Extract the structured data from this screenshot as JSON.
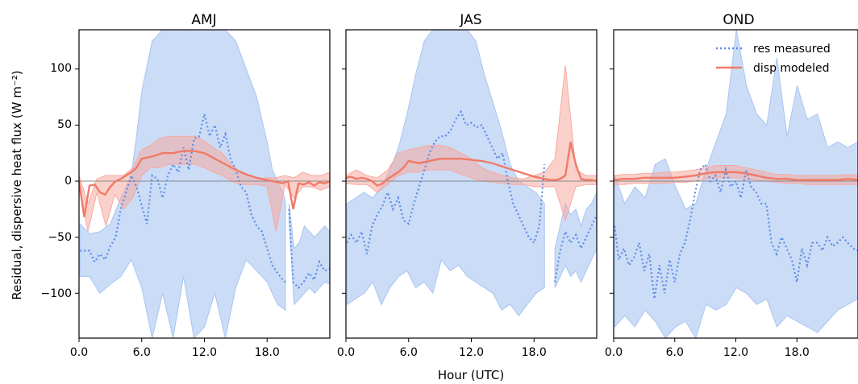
{
  "figure": {
    "ylabel": "Residual, dispersive heat flux (W m⁻²)",
    "xlabel": "Hour (UTC)"
  },
  "legend": {
    "placement": "top-right of third panel",
    "entries": [
      {
        "label": "res measured",
        "style": "dotted",
        "color": "#5b8ee6"
      },
      {
        "label": "disp modeled",
        "style": "solid",
        "color": "#f07a68"
      }
    ]
  },
  "colors": {
    "measured": "#5b8ee6",
    "measured_fill": "#a9c4f2",
    "modeled": "#f07a68",
    "modeled_fill": "#f6aaa0",
    "zero_line": "#888888"
  },
  "chart_data": [
    {
      "type": "line",
      "title": "AMJ",
      "xlim": [
        0,
        24
      ],
      "ylim": [
        -140,
        135
      ],
      "xticks": [
        0,
        6,
        12,
        18
      ],
      "xtick_labels": [
        "0.0",
        "6.0",
        "12.0",
        "18.0"
      ],
      "yticks": [
        -100,
        -50,
        0,
        50,
        100
      ],
      "ytick_labels": [
        "−100",
        "−50",
        "0",
        "50",
        "100"
      ],
      "series": [
        {
          "name": "res measured",
          "x": [
            0.1,
            0.5,
            1.0,
            1.5,
            2.0,
            2.5,
            3.0,
            3.5,
            4.0,
            4.5,
            5.0,
            5.5,
            6.0,
            6.5,
            7.0,
            7.5,
            8.0,
            8.5,
            9.0,
            9.5,
            10.0,
            10.5,
            11.0,
            11.5,
            12.0,
            12.5,
            13.0,
            13.5,
            14.0,
            14.5,
            15.0,
            15.5,
            16.0,
            16.5,
            17.0,
            17.5,
            18.0,
            18.5,
            19.0,
            19.5,
            19.75
          ],
          "y": [
            -62,
            -62,
            -62,
            -72,
            -65,
            -70,
            -58,
            -50,
            -25,
            -10,
            5,
            -5,
            -22,
            -38,
            5,
            2,
            -15,
            5,
            15,
            8,
            30,
            10,
            38,
            40,
            60,
            40,
            50,
            30,
            42,
            20,
            10,
            -5,
            -10,
            -30,
            -40,
            -45,
            -60,
            -75,
            -82,
            -88,
            -90
          ]
        },
        {
          "name": "res measured (segment 2)",
          "x": [
            20.1,
            20.5,
            21.0,
            21.5,
            22.0,
            22.5,
            23.0,
            23.5,
            24.0
          ],
          "y": [
            -25,
            -90,
            -95,
            -90,
            -82,
            -88,
            -72,
            -80,
            -78
          ]
        }
      ],
      "bands": {
        "measured_upper_x": [
          0.1,
          1.0,
          2.0,
          3.0,
          4.0,
          5.0,
          5.5,
          6.0,
          7.0,
          8.0,
          9.0,
          10.0,
          11.0,
          12.0,
          13.0,
          14.0,
          15.0,
          16.0,
          17.0,
          18.0,
          18.5,
          19.0,
          19.5,
          19.75
        ],
        "measured_upper_y": [
          -38,
          -47,
          -45,
          -38,
          -15,
          5,
          40,
          80,
          125,
          135,
          135,
          135,
          135,
          135,
          135,
          135,
          125,
          100,
          75,
          35,
          10,
          0,
          -10,
          -18
        ],
        "measured_lower_x": [
          0.1,
          1.0,
          2.0,
          3.0,
          4.0,
          5.0,
          6.0,
          7.0,
          8.0,
          9.0,
          10.0,
          11.0,
          12.0,
          13.0,
          14.0,
          15.0,
          16.0,
          17.0,
          18.0,
          19.0,
          19.75
        ],
        "measured_lower_y": [
          -85,
          -85,
          -100,
          -92,
          -85,
          -70,
          -95,
          -140,
          -100,
          -140,
          -85,
          -140,
          -130,
          -100,
          -140,
          -95,
          -70,
          -80,
          -90,
          -110,
          -115
        ],
        "measured2_upper_y": [
          -20,
          -60,
          -55,
          -40,
          -45,
          -50,
          -45,
          -40,
          -45
        ],
        "measured2_lower_y": [
          -35,
          -110,
          -105,
          -100,
          -95,
          -100,
          -95,
          -90,
          -92
        ],
        "modeled_upper_y": [
          5,
          -20,
          2,
          5,
          5,
          5,
          12,
          28,
          32,
          38,
          40,
          40,
          40,
          40,
          36,
          30,
          25,
          15,
          8,
          5,
          2,
          3,
          3,
          5,
          3,
          8,
          5,
          5,
          8
        ],
        "modeled_lower_y": [
          -5,
          -45,
          -10,
          -40,
          -12,
          -25,
          -15,
          5,
          12,
          12,
          15,
          15,
          15,
          15,
          12,
          8,
          5,
          0,
          -3,
          -3,
          -3,
          -5,
          -45,
          -3,
          -15,
          -5,
          -5,
          -8,
          -5
        ]
      },
      "modeled": {
        "name": "disp modeled",
        "x": [
          0.0,
          0.5,
          1.0,
          1.5,
          2.0,
          2.5,
          3.0,
          3.5,
          4.0,
          4.5,
          5.0,
          5.5,
          6.0,
          7.0,
          8.0,
          9.0,
          10.0,
          11.0,
          12.0,
          13.0,
          14.0,
          15.0,
          16.0,
          17.0,
          18.0,
          19.0,
          19.5,
          20.0,
          20.5
        ],
        "y": [
          0,
          -32,
          -4,
          -3,
          -10,
          -12,
          -5,
          0,
          2,
          5,
          8,
          12,
          20,
          22,
          25,
          25,
          27,
          27,
          25,
          20,
          15,
          10,
          6,
          3,
          1,
          -1,
          -2,
          0,
          -25
        ]
      },
      "modeled_tail": {
        "x": [
          20.5,
          21.0,
          21.5,
          22.0,
          22.5,
          23.0,
          23.5,
          24.0
        ],
        "y": [
          -25,
          -2,
          -3,
          -1,
          -4,
          -1,
          -2,
          0
        ]
      }
    },
    {
      "type": "line",
      "title": "JAS",
      "xlim": [
        0,
        24
      ],
      "ylim": [
        -140,
        135
      ],
      "xticks": [
        0,
        6,
        12,
        18
      ],
      "xtick_labels": [
        "0.0",
        "6.0",
        "12.0",
        "18.0"
      ],
      "series": [
        {
          "name": "res measured",
          "x": [
            0.1,
            0.5,
            1.0,
            1.5,
            2.0,
            2.5,
            3.0,
            3.5,
            4.0,
            4.5,
            5.0,
            5.5,
            6.0,
            6.5,
            7.0,
            7.5,
            8.0,
            8.5,
            9.0,
            9.5,
            10.0,
            10.5,
            11.0,
            11.5,
            12.0,
            12.5,
            13.0,
            13.5,
            14.0,
            14.5,
            15.0,
            15.5,
            16.0,
            16.5,
            17.0,
            17.5,
            18.0,
            18.5,
            19.0
          ],
          "y": [
            -55,
            -48,
            -55,
            -45,
            -65,
            -40,
            -30,
            -22,
            -10,
            -25,
            -15,
            -35,
            -38,
            -20,
            -5,
            10,
            25,
            35,
            40,
            40,
            45,
            55,
            62,
            50,
            52,
            48,
            50,
            40,
            30,
            20,
            25,
            0,
            -20,
            -30,
            -40,
            -50,
            -55,
            -40,
            15
          ]
        },
        {
          "name": "res measured (segment 2)",
          "x": [
            20.0,
            20.5,
            21.0,
            21.5,
            22.0,
            22.5,
            23.0,
            23.5,
            24.0
          ],
          "y": [
            -90,
            -62,
            -45,
            -55,
            -48,
            -60,
            -50,
            -40,
            -30
          ]
        }
      ],
      "bands": {
        "measured_upper_y": [
          -20,
          -15,
          -10,
          -15,
          -5,
          10,
          30,
          60,
          95,
          125,
          135,
          135,
          135,
          135,
          135,
          125,
          95,
          70,
          45,
          15,
          0,
          -5,
          -10,
          -20
        ],
        "measured_lower_y": [
          -110,
          -105,
          -100,
          -90,
          -110,
          -95,
          -85,
          -80,
          -95,
          -90,
          -100,
          -70,
          -80,
          -75,
          -85,
          -90,
          -95,
          -100,
          -115,
          -110,
          -120,
          -110,
          -100,
          -95
        ],
        "measured2_upper_y": [
          -60,
          -40,
          -20,
          -30,
          -25,
          -40,
          -25,
          -20,
          -10
        ],
        "measured2_lower_y": [
          -95,
          -85,
          -75,
          -85,
          -80,
          -90,
          -80,
          -70,
          -60
        ],
        "modeled_upper_y": [
          5,
          10,
          5,
          3,
          10,
          25,
          28,
          30,
          32,
          32,
          30,
          25,
          20,
          12,
          8,
          5,
          3,
          2,
          5,
          8,
          20,
          103,
          10,
          5,
          5
        ],
        "modeled_lower_y": [
          -2,
          -3,
          -3,
          -10,
          -3,
          5,
          8,
          8,
          10,
          10,
          10,
          6,
          3,
          0,
          -1,
          -2,
          -3,
          -3,
          -5,
          -5,
          -5,
          -35,
          -5,
          -3,
          -3
        ]
      },
      "modeled": {
        "name": "disp modeled",
        "x": [
          0.0,
          0.5,
          1.0,
          1.5,
          2.0,
          2.5,
          3.0,
          3.5,
          4.0,
          4.5,
          5.0,
          5.5,
          6.0,
          7.0,
          8.0,
          9.0,
          10.0,
          11.0,
          12.0,
          13.0,
          14.0,
          15.0,
          16.0,
          17.0,
          18.0,
          19.0,
          19.5,
          20.0,
          20.5,
          21.0,
          21.5,
          22.0,
          22.5,
          23.0,
          23.5,
          24.0
        ],
        "y": [
          3,
          4,
          2,
          3,
          2,
          0,
          -4,
          -2,
          2,
          5,
          8,
          12,
          18,
          16,
          18,
          20,
          20,
          20,
          19,
          18,
          16,
          13,
          10,
          7,
          4,
          2,
          1,
          1,
          2,
          5,
          35,
          15,
          2,
          1,
          1,
          0
        ]
      }
    },
    {
      "type": "line",
      "title": "OND",
      "xlim": [
        0,
        24
      ],
      "ylim": [
        -140,
        135
      ],
      "xticks": [
        0,
        6,
        12,
        18
      ],
      "xtick_labels": [
        "0.0",
        "6.0",
        "12.0",
        "18.0"
      ],
      "series": [
        {
          "name": "res measured",
          "x": [
            0.1,
            0.5,
            1.0,
            1.5,
            2.0,
            2.5,
            3.0,
            3.5,
            4.0,
            4.5,
            5.0,
            5.5,
            6.0,
            6.5,
            7.0,
            7.5,
            8.0,
            8.5,
            9.0,
            9.5,
            10.0,
            10.5,
            11.0,
            11.5,
            12.0,
            12.5,
            13.0,
            13.5,
            14.0,
            14.5,
            15.0,
            15.5,
            16.0,
            16.5,
            17.0,
            17.5,
            18.0,
            18.5,
            19.0,
            19.5,
            20.0,
            20.5,
            21.0,
            21.5,
            22.0,
            22.5,
            23.0,
            23.5,
            24.0
          ],
          "y": [
            -40,
            -70,
            -60,
            -75,
            -68,
            -55,
            -80,
            -65,
            -105,
            -75,
            -100,
            -70,
            -90,
            -65,
            -55,
            -35,
            -10,
            10,
            15,
            0,
            5,
            -10,
            10,
            -5,
            0,
            -15,
            10,
            -5,
            -10,
            -20,
            -20,
            -55,
            -65,
            -50,
            -60,
            -70,
            -90,
            -60,
            -75,
            -55,
            -55,
            -62,
            -50,
            -58,
            -55,
            -50,
            -55,
            -60,
            -62
          ]
        }
      ],
      "bands": {
        "measured_upper_y": [
          5,
          -20,
          -5,
          -15,
          15,
          20,
          -5,
          -25,
          -20,
          10,
          35,
          60,
          135,
          85,
          60,
          50,
          110,
          40,
          85,
          55,
          60,
          30,
          35,
          30,
          35
        ],
        "measured_lower_y": [
          -130,
          -120,
          -130,
          -115,
          -125,
          -140,
          -130,
          -125,
          -140,
          -110,
          -115,
          -110,
          -95,
          -100,
          -110,
          -105,
          -130,
          -120,
          -125,
          -130,
          -135,
          -125,
          -115,
          -110,
          -105
        ],
        "modeled_upper_y": [
          5,
          6,
          6,
          7,
          7,
          8,
          8,
          9,
          10,
          12,
          14,
          14,
          14,
          12,
          10,
          8,
          6,
          6,
          5,
          5,
          5,
          5,
          5,
          6,
          5
        ],
        "modeled_lower_y": [
          -3,
          -3,
          -2,
          -2,
          -2,
          -2,
          -1,
          -1,
          0,
          2,
          3,
          3,
          3,
          2,
          1,
          0,
          -1,
          -2,
          -2,
          -3,
          -3,
          -3,
          -3,
          -3,
          -3
        ]
      },
      "modeled": {
        "name": "disp modeled",
        "x": [
          0.0,
          1.0,
          2.0,
          3.0,
          4.0,
          5.0,
          6.0,
          7.0,
          8.0,
          9.0,
          10.0,
          11.0,
          12.0,
          13.0,
          14.0,
          15.0,
          16.0,
          17.0,
          18.0,
          19.0,
          20.0,
          21.0,
          22.0,
          23.0,
          24.0
        ],
        "y": [
          1,
          2,
          2,
          3,
          3,
          3,
          3,
          4,
          5,
          7,
          8,
          8,
          8,
          7,
          5,
          3,
          2,
          2,
          1,
          1,
          1,
          1,
          1,
          2,
          1
        ]
      }
    }
  ]
}
